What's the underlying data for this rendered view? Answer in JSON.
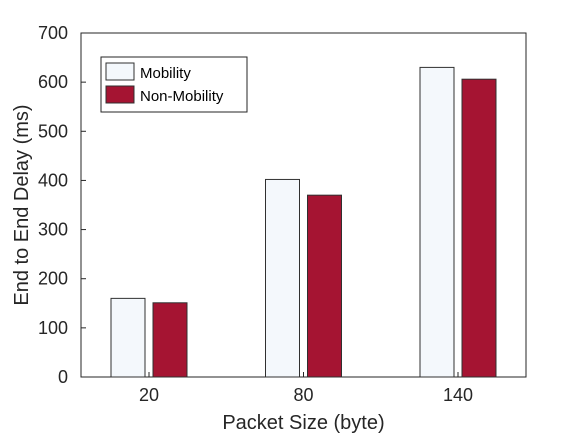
{
  "chart_data": {
    "type": "bar",
    "title": "",
    "xlabel": "Packet Size (byte)",
    "ylabel": "End to End Delay (ms)",
    "categories": [
      "20",
      "80",
      "140"
    ],
    "series": [
      {
        "name": "Mobility",
        "values": [
          160,
          402,
          630
        ],
        "color": "#f4f8fc"
      },
      {
        "name": "Non-Mobility",
        "values": [
          151,
          370,
          606
        ],
        "color": "#a51432"
      }
    ],
    "ylim": [
      0,
      700
    ],
    "yticks": [
      "0",
      "100",
      "200",
      "300",
      "400",
      "500",
      "600",
      "700"
    ],
    "grid": false,
    "legend_position": "top-left"
  }
}
